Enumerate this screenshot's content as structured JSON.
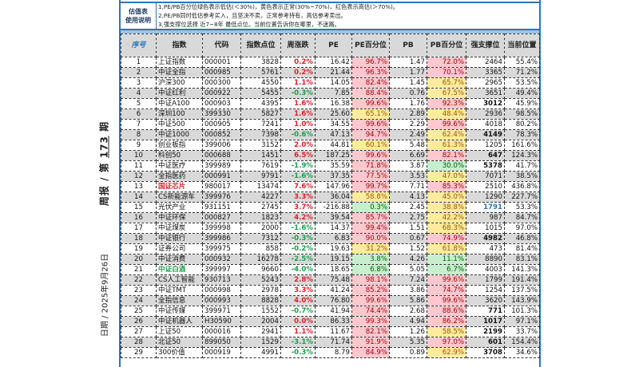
{
  "side": {
    "week_prefix": "周报 / 第",
    "week_number": "173",
    "week_suffix": "期",
    "date": "日期 / 2025年9月26日"
  },
  "info": {
    "label_line1": "估值表",
    "label_line2": "使用说明",
    "notes": [
      "1,PE/PB百分位绿色表示低估(＜30%)，黄色表示正常(30%~70%)，红色表示高估(＞70%)。",
      "2,PE/PB同时低估参考买入，且坚决不卖，正常参考持有，高估参考卖出。",
      "3,强支撑位选择 近7~8年 最低点位。当前位置告诉你在哪里，不迷路。"
    ]
  },
  "colors": {
    "high": "#ffc7ce",
    "normal": "#ffeb9c",
    "low": "#c6efce",
    "border": "#2e75b6"
  },
  "columns": [
    "序号",
    "指数",
    "代码",
    "指数点位",
    "周涨跌",
    "PE",
    "PE百分位",
    "PB",
    "PB百分位",
    "强支撑位",
    "当前位置"
  ],
  "rows": [
    {
      "no": "1",
      "name": "上证指数",
      "code": "000001",
      "level": "3828",
      "chg": "0.2%",
      "pe": "16.42",
      "pe_pct": "96.7%",
      "pb": "1.47",
      "pb_pct": "72.0%",
      "support": "2464",
      "pos": "55.4%"
    },
    {
      "no": "2",
      "name": "中证全指",
      "code": "000985",
      "level": "5761",
      "chg": "0.2%",
      "pe": "21.44",
      "pe_pct": "96.3%",
      "pb": "1.77",
      "pb_pct": "70.1%",
      "support": "3365",
      "pos": "71.2%"
    },
    {
      "no": "3",
      "name": "沪深300",
      "code": "000300",
      "level": "4550",
      "chg": "1.1%",
      "pe": "14.05",
      "pe_pct": "82.4%",
      "pb": "1.45",
      "pb_pct": "65.7%",
      "support": "2965",
      "pos": "53.5%"
    },
    {
      "no": "4",
      "name": "中证红利",
      "code": "000922",
      "level": "5455",
      "chg": "-0.3%",
      "pe": "7.85",
      "pe_pct": "88.4%",
      "pb": "0.76",
      "pb_pct": "67.5%",
      "support": "3651",
      "pos": "49.4%"
    },
    {
      "no": "5",
      "name": "中证A100",
      "code": "000903",
      "level": "4395",
      "chg": "1.6%",
      "pe": "16.38",
      "pe_pct": "99.6%",
      "pb": "1.76",
      "pb_pct": "92.3%",
      "support": "3012",
      "pos": "45.9%",
      "support_style": "bold"
    },
    {
      "no": "6",
      "name": "深圳100",
      "code": "399330",
      "level": "5827",
      "chg": "1.6%",
      "pe": "25.60",
      "pe_pct": "65.1%",
      "pb": "2.89",
      "pb_pct": "48.4%",
      "support": "2936",
      "pos": "98.5%"
    },
    {
      "no": "7",
      "name": "中证500",
      "code": "000905",
      "level": "7241",
      "chg": "1.0%",
      "pe": "34.55",
      "pe_pct": "99.6%",
      "pb": "2.29",
      "pb_pct": "99.6%",
      "support": "4018",
      "pos": "80.2%"
    },
    {
      "no": "8",
      "name": "中证1000",
      "code": "000852",
      "level": "7398",
      "chg": "-0.6%",
      "pe": "47.13",
      "pe_pct": "94.7%",
      "pb": "2.49",
      "pb_pct": "62.4%",
      "support": "4149",
      "pos": "78.3%",
      "support_style": "bold"
    },
    {
      "no": "9",
      "name": "创业板指",
      "code": "399006",
      "level": "3152",
      "chg": "2.0%",
      "pe": "44.81",
      "pe_pct": "60.1%",
      "pb": "5.48",
      "pb_pct": "61.3%",
      "support": "1205",
      "pos": "161.6%"
    },
    {
      "no": "10",
      "name": "科创50",
      "code": "000688",
      "level": "1451",
      "chg": "6.5%",
      "pe": "187.25",
      "pe_pct": "99.6%",
      "pb": "6.69",
      "pb_pct": "82.1%",
      "support": "647",
      "pos": "124.3%",
      "support_style": "bold"
    },
    {
      "no": "11",
      "name": "中证医疗",
      "code": "399989",
      "level": "7619",
      "chg": "-1.9%",
      "pe": "35.59",
      "pe_pct": "71.8%",
      "pb": "3.87",
      "pb_pct": "30.0%",
      "support": "5378",
      "pos": "41.7%",
      "support_style": "bold"
    },
    {
      "no": "12",
      "name": "全指医药",
      "code": "000991",
      "level": "9791",
      "chg": "-1.6%",
      "pe": "37.35",
      "pe_pct": "77.5%",
      "pb": "3.53",
      "pb_pct": "47.0%",
      "support": "7071",
      "pos": "38.5%"
    },
    {
      "no": "13",
      "name": "国证芯片",
      "code": "980017",
      "level": "13474",
      "chg": "7.6%",
      "pe": "147.96",
      "pe_pct": "99.7%",
      "pb": "7.71",
      "pb_pct": "85.3%",
      "support": "2510",
      "pos": "436.8%",
      "name_style": "red"
    },
    {
      "no": "14",
      "name": "CS新能源车",
      "code": "399976",
      "level": "4227",
      "chg": "3.3%",
      "pe": "36.04",
      "pe_pct": "58.8%",
      "pb": "4.13",
      "pb_pct": "45.0%",
      "support": "1290",
      "pos": "227.7%"
    },
    {
      "no": "15",
      "name": "光伏产业",
      "code": "931151",
      "level": "2745",
      "chg": "3.7%",
      "pe": "-216.88",
      "pe_pct": "0.3%",
      "pb": "2.45",
      "pb_pct": "38.8%",
      "support": "1791",
      "pos": "53.3%",
      "support_style": "blue"
    },
    {
      "no": "16",
      "name": "中证环保",
      "code": "000827",
      "level": "1823",
      "chg": "4.2%",
      "pe": "39.54",
      "pe_pct": "85.7%",
      "pb": "2.75",
      "pb_pct": "42.2%",
      "support": "987",
      "pos": "84.7%"
    },
    {
      "no": "17",
      "name": "中证煤炭",
      "code": "399998",
      "level": "2000",
      "chg": "-1.6%",
      "pe": "14.37",
      "pe_pct": "99.4%",
      "pb": "1.51",
      "pb_pct": "68.3%",
      "support": "1015",
      "pos": "97.0%"
    },
    {
      "no": "18",
      "name": "中证银行",
      "code": "399986",
      "level": "7312",
      "chg": "-0.3%",
      "pe": "6.83",
      "pe_pct": "90.0%",
      "pb": "0.67",
      "pb_pct": "74.9%",
      "support": "4982",
      "pos": "46.8%",
      "support_style": "bold"
    },
    {
      "no": "19",
      "name": "证券公司",
      "code": "399975",
      "level": "858",
      "chg": "-0.2%",
      "pe": "19.63",
      "pe_pct": "31.2%",
      "pb": "1.52",
      "pb_pct": "61.8%",
      "support": "473",
      "pos": "81.4%"
    },
    {
      "no": "20",
      "name": "中证消费",
      "code": "000932",
      "level": "16278",
      "chg": "-2.5%",
      "pe": "19.15",
      "pe_pct": "3.8%",
      "pb": "4.26",
      "pb_pct": "11.1%",
      "support": "8890",
      "pos": "83.1%"
    },
    {
      "no": "21",
      "name": "中证白酒",
      "code": "399997",
      "level": "9660",
      "chg": "-4.0%",
      "pe": "18.65",
      "pe_pct": "6.8%",
      "pb": "5.05",
      "pb_pct": "6.7%",
      "support": "4003",
      "pos": "141.3%",
      "name_style": "green"
    },
    {
      "no": "22",
      "name": "CS人工智能",
      "code": "930713",
      "level": "5243",
      "chg": "2.8%",
      "pe": "75.48",
      "pe_pct": "98.1%",
      "pb": "7.24",
      "pb_pct": "99.6%",
      "support": "1799",
      "pos": "191.4%"
    },
    {
      "no": "23",
      "name": "中证TMT",
      "code": "000998",
      "level": "2978",
      "chg": "3.3%",
      "pe": "41.24",
      "pe_pct": "85.2%",
      "pb": "3.86",
      "pb_pct": "74.7%",
      "support": "1254",
      "pos": "137.5%"
    },
    {
      "no": "24",
      "name": "全指信息",
      "code": "000993",
      "level": "8828",
      "chg": "4.0%",
      "pe": "76.80",
      "pe_pct": "99.6%",
      "pb": "5.86",
      "pb_pct": "99.6%",
      "support": "3620",
      "pos": "143.9%"
    },
    {
      "no": "25",
      "name": "中证传媒",
      "code": "399971",
      "level": "1552",
      "chg": "-0.7%",
      "pe": "41.94",
      "pe_pct": "74.4%",
      "pb": "2.68",
      "pb_pct": "88.6%",
      "support": "771",
      "pos": "101.3%",
      "support_style": "bold"
    },
    {
      "no": "26",
      "name": "中证机器人",
      "code": "H30590",
      "level": "2004",
      "chg": "0.0%",
      "pe": "86.33",
      "pe_pct": "99.3%",
      "pb": "4.94",
      "pb_pct": "86.2%",
      "support": "1017",
      "pos": "97.1%",
      "support_style": "bold"
    },
    {
      "no": "27",
      "name": "上证50",
      "code": "000016",
      "level": "2941",
      "chg": "1.1%",
      "pe": "11.67",
      "pe_pct": "82.1%",
      "pb": "1.26",
      "pb_pct": "58.5%",
      "support": "2199",
      "pos": "33.7%",
      "support_style": "bold"
    },
    {
      "no": "28",
      "name": "北证50",
      "code": "899050",
      "level": "1529",
      "chg": "-3.1%",
      "pe": "71.74",
      "pe_pct": "91.9%",
      "pb": "5.35",
      "pb_pct": "97.0%",
      "support": "601",
      "pos": "154.4%",
      "support_style": "bold"
    },
    {
      "no": "29",
      "name": "300价值",
      "code": "000919",
      "level": "4991",
      "chg": "-0.3%",
      "pe": "8.79",
      "pe_pct": "84.9%",
      "pb": "0.89",
      "pb_pct": "62.9%",
      "support": "3708",
      "pos": "34.6%",
      "support_style": "bold"
    }
  ]
}
